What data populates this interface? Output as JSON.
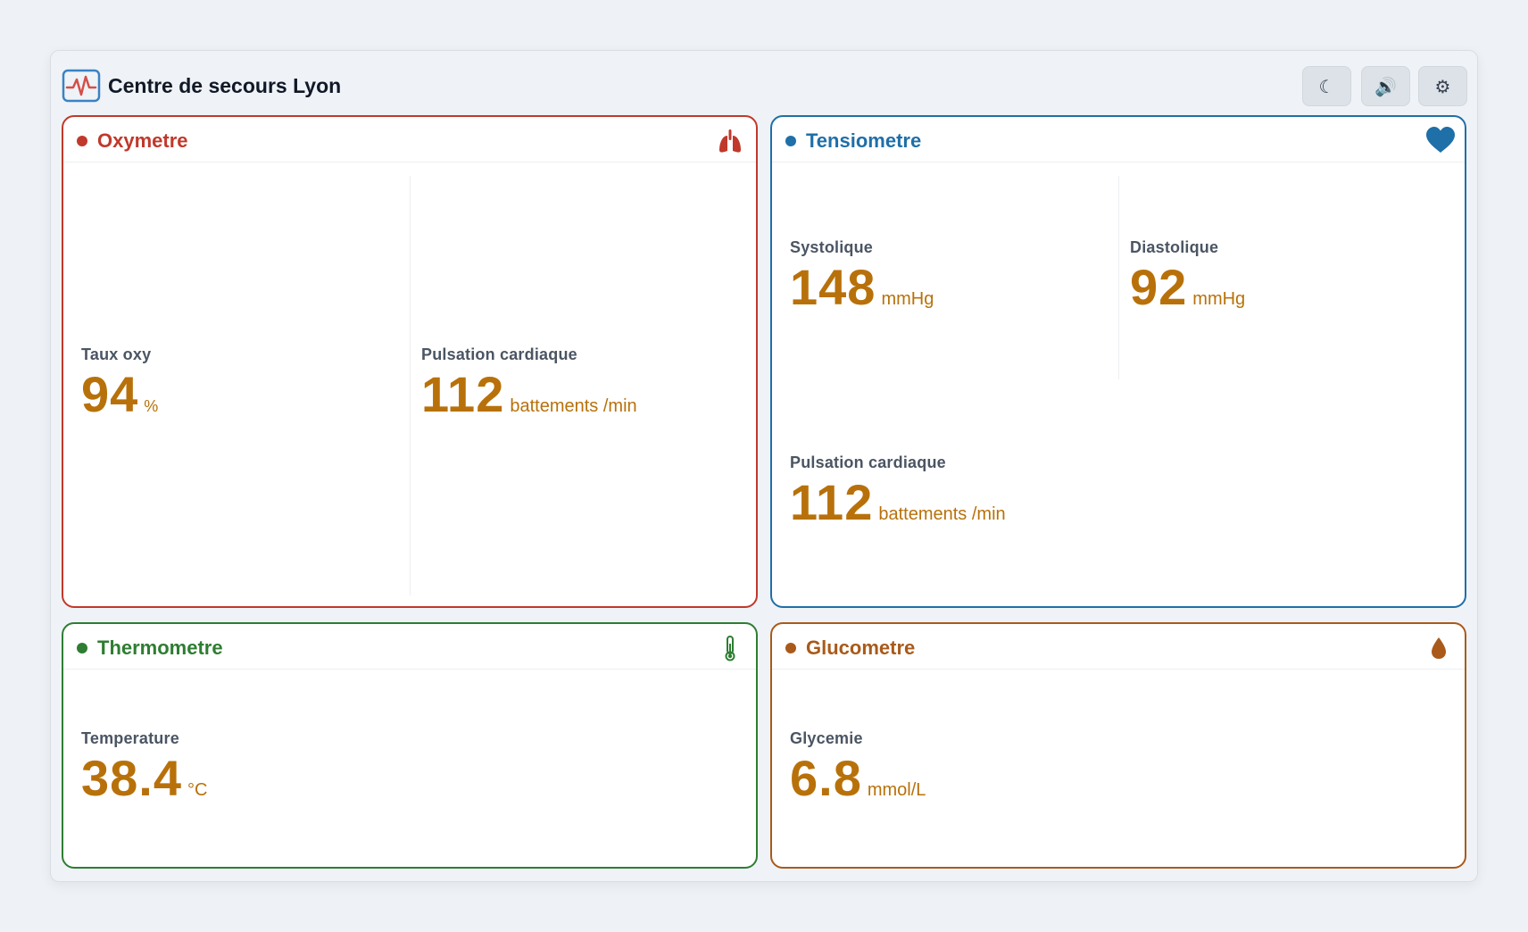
{
  "app": {
    "title": "Centre de secours Lyon",
    "logo_icon": "heartbeat-monitor-icon",
    "buttons": [
      {
        "name": "dark-mode-button",
        "icon": "moon-icon",
        "glyph": "☾"
      },
      {
        "name": "sound-button",
        "icon": "speaker-icon",
        "glyph": "🔊"
      },
      {
        "name": "settings-button",
        "icon": "gear-icon",
        "glyph": "⚙"
      }
    ]
  },
  "colors": {
    "oxymetre": "#c0392b",
    "tensiometre": "#1f6fa8",
    "thermometre": "#2e7d32",
    "glucometre": "#a95a1a",
    "value": "#b8710a",
    "background": "#eef2f6"
  },
  "oxymetre": {
    "title": "Oxymetre",
    "icon": "lungs-icon",
    "spo2": {
      "label": "Taux oxy",
      "value": "94",
      "unit": "%"
    },
    "pulse": {
      "label": "Pulsation cardiaque",
      "value": "112",
      "unit": "battements /min"
    }
  },
  "tensiometre": {
    "title": "Tensiometre",
    "icon": "heart-icon",
    "systolic": {
      "label": "Systolique",
      "value": "148",
      "unit": "mmHg"
    },
    "diastolic": {
      "label": "Diastolique",
      "value": "92",
      "unit": "mmHg"
    },
    "pulse": {
      "label": "Pulsation cardiaque",
      "value": "112",
      "unit": "battements /min"
    }
  },
  "thermometre": {
    "title": "Thermometre",
    "icon": "thermometer-icon",
    "temperature": {
      "label": "Temperature",
      "value": "38.4",
      "unit": "°C"
    }
  },
  "glucometre": {
    "title": "Glucometre",
    "icon": "droplet-icon",
    "glycemia": {
      "label": "Glycemie",
      "value": "6.8",
      "unit": "mmol/L"
    }
  }
}
